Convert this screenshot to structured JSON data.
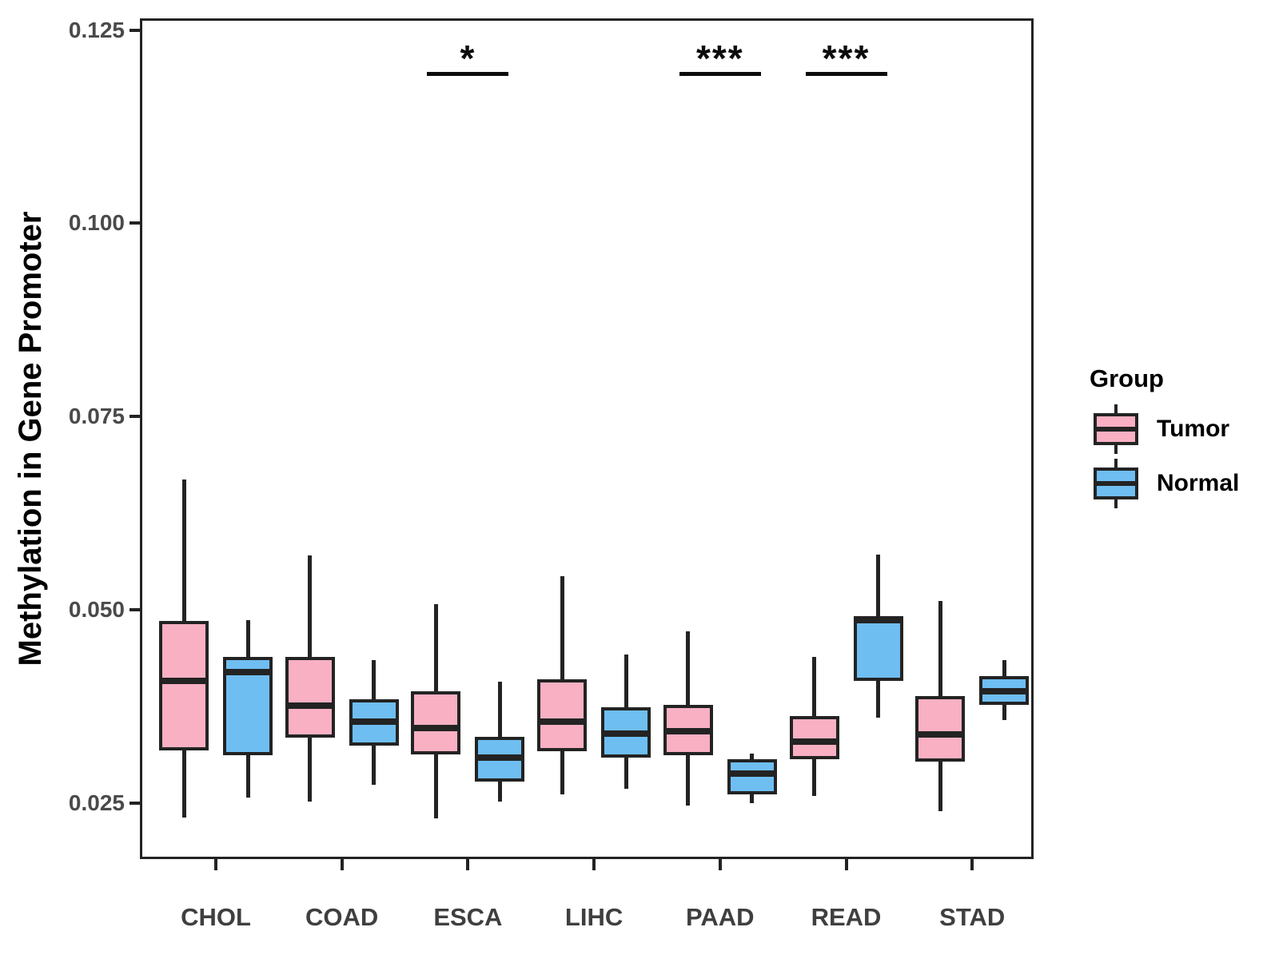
{
  "figure": {
    "ylabel": "Methylation in Gene Promoter"
  },
  "legend": {
    "title": "Group",
    "items": [
      {
        "label": "Tumor",
        "color": "#F9B0C3"
      },
      {
        "label": "Normal",
        "color": "#6FBEF2"
      }
    ]
  },
  "colors": {
    "box_border": "#232323",
    "axis": "#232323",
    "tick_label": "#4a4a4a",
    "axis_title": "#000000",
    "annotation": "#0c0c0c"
  },
  "chart_data": {
    "type": "boxplot",
    "title": "",
    "xlabel": "",
    "ylabel": "Methylation in Gene Promoter",
    "categories": [
      "CHOL",
      "COAD",
      "ESCA",
      "LIHC",
      "PAAD",
      "READ",
      "STAD"
    ],
    "groups": [
      "Tumor",
      "Normal"
    ],
    "yticks": [
      0.025,
      0.05,
      0.075,
      0.1,
      0.125
    ],
    "ytick_labels": [
      "0.025",
      "0.050",
      "0.075",
      "0.100",
      "0.125"
    ],
    "ylim": [
      0.0178,
      0.1265
    ],
    "grid": false,
    "legend_position": "right",
    "series": [
      {
        "name": "Tumor",
        "color": "#F9B0C3",
        "boxes": [
          {
            "category": "CHOL",
            "whisker_low": 0.0232,
            "q1": 0.0318,
            "median": 0.0408,
            "q3": 0.0486,
            "whisker_high": 0.0669
          },
          {
            "category": "COAD",
            "whisker_low": 0.0252,
            "q1": 0.0335,
            "median": 0.0376,
            "q3": 0.0439,
            "whisker_high": 0.0571
          },
          {
            "category": "ESCA",
            "whisker_low": 0.0231,
            "q1": 0.0313,
            "median": 0.0347,
            "q3": 0.0395,
            "whisker_high": 0.0508
          },
          {
            "category": "LIHC",
            "whisker_low": 0.0262,
            "q1": 0.0318,
            "median": 0.0356,
            "q3": 0.041,
            "whisker_high": 0.0544
          },
          {
            "category": "PAAD",
            "whisker_low": 0.0247,
            "q1": 0.0312,
            "median": 0.0343,
            "q3": 0.0377,
            "whisker_high": 0.0472
          },
          {
            "category": "READ",
            "whisker_low": 0.026,
            "q1": 0.0307,
            "median": 0.033,
            "q3": 0.0363,
            "whisker_high": 0.0439
          },
          {
            "category": "STAD",
            "whisker_low": 0.024,
            "q1": 0.0304,
            "median": 0.0339,
            "q3": 0.0389,
            "whisker_high": 0.0512
          }
        ]
      },
      {
        "name": "Normal",
        "color": "#6FBEF2",
        "boxes": [
          {
            "category": "CHOL",
            "whisker_low": 0.0258,
            "q1": 0.0312,
            "median": 0.042,
            "q3": 0.0439,
            "whisker_high": 0.0487
          },
          {
            "category": "COAD",
            "whisker_low": 0.0274,
            "q1": 0.0325,
            "median": 0.0356,
            "q3": 0.0385,
            "whisker_high": 0.0435
          },
          {
            "category": "ESCA",
            "whisker_low": 0.0252,
            "q1": 0.0278,
            "median": 0.0309,
            "q3": 0.0336,
            "whisker_high": 0.0407
          },
          {
            "category": "LIHC",
            "whisker_low": 0.0269,
            "q1": 0.0309,
            "median": 0.034,
            "q3": 0.0374,
            "whisker_high": 0.0443
          },
          {
            "category": "PAAD",
            "whisker_low": 0.025,
            "q1": 0.0262,
            "median": 0.0289,
            "q3": 0.0307,
            "whisker_high": 0.0314
          },
          {
            "category": "READ",
            "whisker_low": 0.0361,
            "q1": 0.0408,
            "median": 0.0487,
            "q3": 0.0492,
            "whisker_high": 0.0572
          },
          {
            "category": "STAD",
            "whisker_low": 0.0358,
            "q1": 0.0377,
            "median": 0.0395,
            "q3": 0.0415,
            "whisker_high": 0.0435
          }
        ]
      }
    ],
    "annotations": [
      {
        "category": "ESCA",
        "label": "*"
      },
      {
        "category": "PAAD",
        "label": "***"
      },
      {
        "category": "READ",
        "label": "***"
      }
    ]
  }
}
